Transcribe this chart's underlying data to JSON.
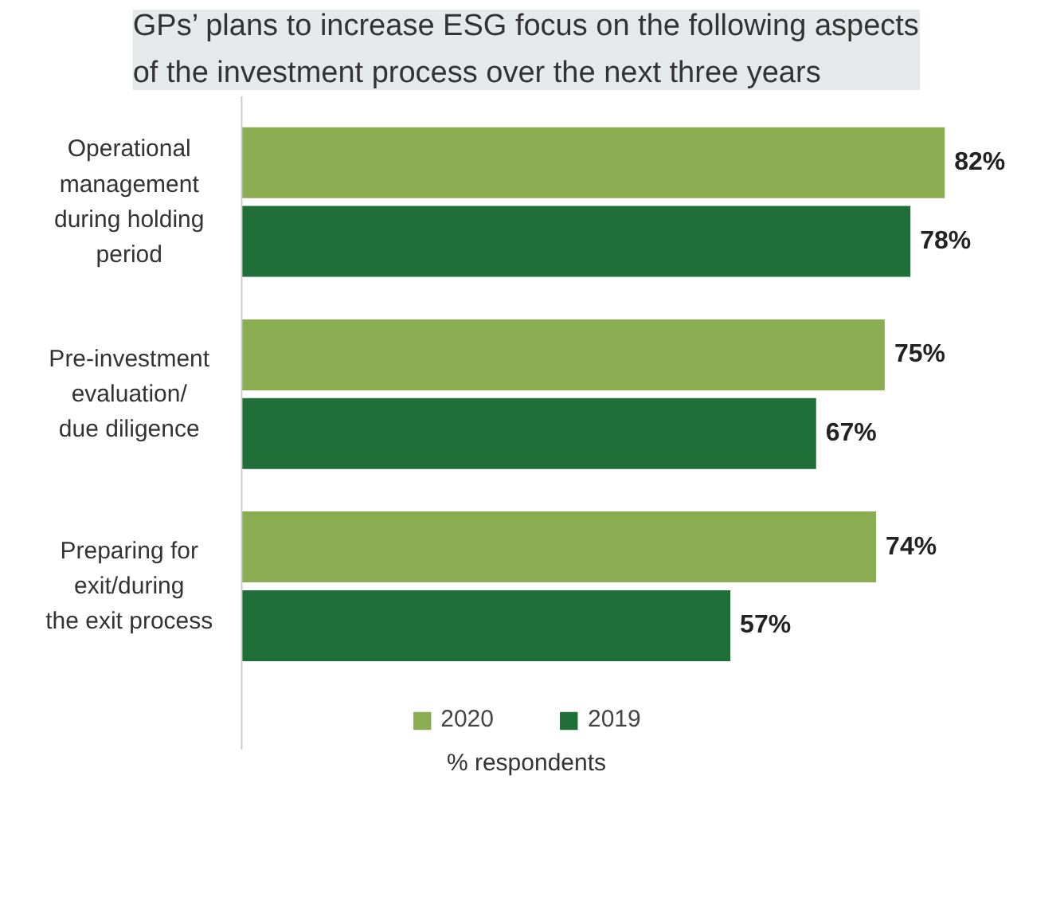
{
  "chart_data": {
    "type": "bar",
    "orientation": "horizontal",
    "title": "GPs’ plans to increase ESG focus on the following aspects of the investment process over the next three years",
    "categories": [
      "Operational\nmanagement\nduring holding\nperiod",
      "Pre-investment\nevaluation/\ndue diligence",
      "Preparing for\nexit/during\nthe exit process"
    ],
    "xlabel": "% respondents",
    "legend": "bottom",
    "grid": false,
    "series": [
      {
        "name": "2020",
        "color": "#8aad52",
        "values": [
          82,
          75,
          74
        ],
        "value_labels": [
          "82%",
          "75%",
          "74%"
        ]
      },
      {
        "name": "2019",
        "color": "#1f6e37",
        "values": [
          78,
          67,
          57
        ],
        "value_labels": [
          "78%",
          "67%",
          "57%"
        ]
      }
    ]
  }
}
